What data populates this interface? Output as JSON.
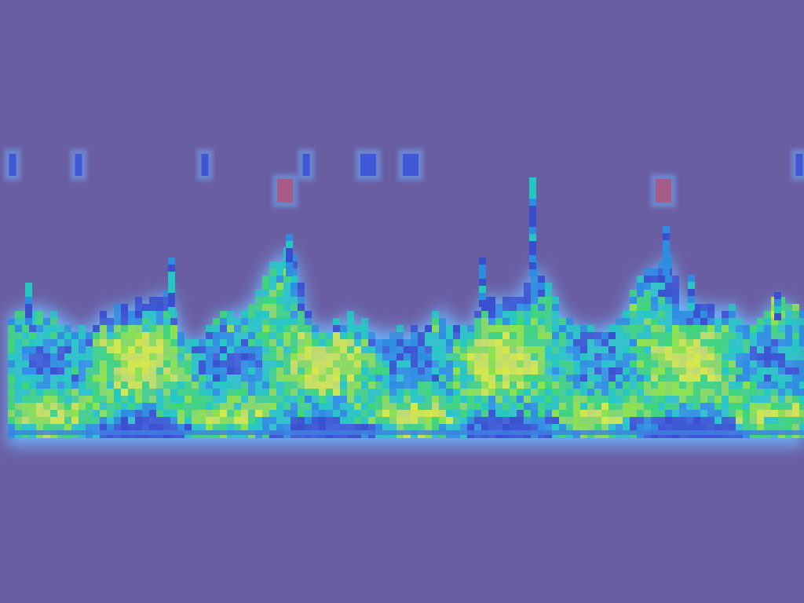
{
  "view": {
    "kind": "heatmap-overlay",
    "colors": {
      "background": "#6a5ea3",
      "glow": "#6fb8ff",
      "cold": "#3f57d6",
      "cool": "#2fc7b5",
      "warm": "#5fe05c",
      "hot": "#d9e84a",
      "faint_red": "#a65a86"
    },
    "colormap": [
      "#3a4fd0",
      "#2e8de0",
      "#26c7c2",
      "#3fd67a",
      "#8ee24d",
      "#d6e84a"
    ]
  }
}
